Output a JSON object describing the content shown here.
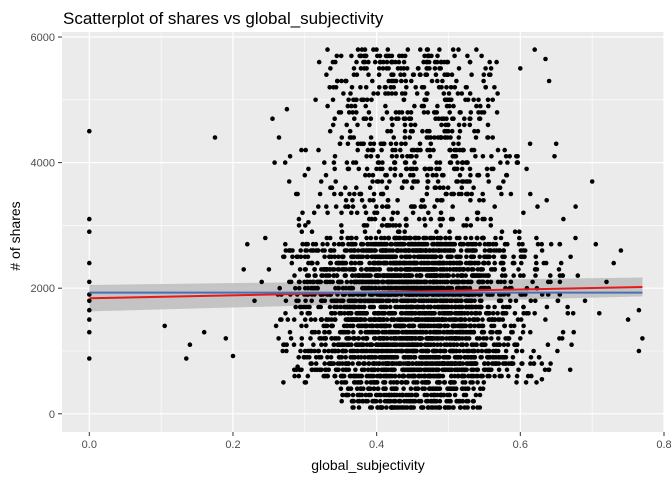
{
  "chart_data": {
    "type": "scatter",
    "title": "Scatterplot of shares vs global_subjectivity",
    "xlabel": "global_subjectivity",
    "ylabel": "# of shares",
    "xlim": [
      -0.038,
      0.8
    ],
    "ylim": [
      -290,
      6080
    ],
    "x_ticks": [
      0.0,
      0.2,
      0.4,
      0.6,
      0.8
    ],
    "x_tick_labels": [
      "0.0",
      "0.2",
      "0.4",
      "0.6",
      "0.8"
    ],
    "y_ticks": [
      0,
      2000,
      4000,
      6000
    ],
    "y_tick_labels": [
      "0",
      "2000",
      "4000",
      "6000"
    ],
    "grid": true,
    "background_color": "#ebebeb",
    "point_color": "#000000",
    "fit_lines": [
      {
        "color": "#e41a1c",
        "x": [
          0.0,
          0.77
        ],
        "y": [
          1840,
          2020
        ]
      },
      {
        "color": "#4a6fb5",
        "x": [
          0.0,
          0.77
        ],
        "y": [
          1930,
          1930
        ]
      }
    ],
    "confidence_band": {
      "color": "#bdbdbd",
      "x": [
        0.0,
        0.77
      ],
      "lower": [
        1630,
        1870
      ],
      "upper": [
        2050,
        2170
      ]
    },
    "outlier_points": [
      [
        0.0,
        4500
      ],
      [
        0.0,
        3100
      ],
      [
        0.0,
        2900
      ],
      [
        0.0,
        2400
      ],
      [
        0.0,
        2100
      ],
      [
        0.0,
        1900
      ],
      [
        0.0,
        1800
      ],
      [
        0.0,
        1650
      ],
      [
        0.0,
        1500
      ],
      [
        0.0,
        1300
      ],
      [
        0.0,
        880
      ],
      [
        0.105,
        1400
      ],
      [
        0.135,
        880
      ],
      [
        0.14,
        1100
      ],
      [
        0.16,
        1300
      ],
      [
        0.175,
        4400
      ],
      [
        0.19,
        1200
      ],
      [
        0.2,
        920
      ],
      [
        0.215,
        2300
      ],
      [
        0.22,
        2700
      ],
      [
        0.23,
        1800
      ],
      [
        0.24,
        2100
      ],
      [
        0.245,
        2800
      ],
      [
        0.25,
        2300
      ],
      [
        0.255,
        4700
      ],
      [
        0.258,
        4000
      ],
      [
        0.26,
        1400
      ],
      [
        0.265,
        2000
      ],
      [
        0.27,
        2500
      ],
      [
        0.275,
        4850
      ],
      [
        0.28,
        2600
      ],
      [
        0.29,
        3500
      ],
      [
        0.3,
        3800
      ],
      [
        0.305,
        3050
      ],
      [
        0.31,
        2900
      ],
      [
        0.315,
        5000
      ],
      [
        0.32,
        5600
      ],
      [
        0.33,
        5400
      ],
      [
        0.34,
        5200
      ],
      [
        0.29,
        750
      ],
      [
        0.3,
        500
      ],
      [
        0.285,
        1100
      ],
      [
        0.635,
        5650
      ],
      [
        0.64,
        5300
      ],
      [
        0.65,
        4300
      ],
      [
        0.66,
        3100
      ],
      [
        0.67,
        2500
      ],
      [
        0.68,
        2200
      ],
      [
        0.69,
        1800
      ],
      [
        0.7,
        3700
      ],
      [
        0.705,
        2700
      ],
      [
        0.71,
        1600
      ],
      [
        0.72,
        2100
      ],
      [
        0.73,
        2400
      ],
      [
        0.74,
        2600
      ],
      [
        0.75,
        1500
      ],
      [
        0.765,
        1650
      ],
      [
        0.77,
        1200
      ],
      [
        0.765,
        1000
      ],
      [
        0.62,
        5800
      ],
      [
        0.6,
        5500
      ],
      [
        0.655,
        1900
      ],
      [
        0.64,
        700
      ],
      [
        0.63,
        550
      ]
    ],
    "main_cloud": {
      "x_center": 0.45,
      "x_spread": 0.08,
      "x_min": 0.26,
      "x_max": 0.68,
      "y_max": 5800,
      "y_dense_min": 600,
      "y_dense_max": 2800,
      "point_count": 4200
    }
  }
}
